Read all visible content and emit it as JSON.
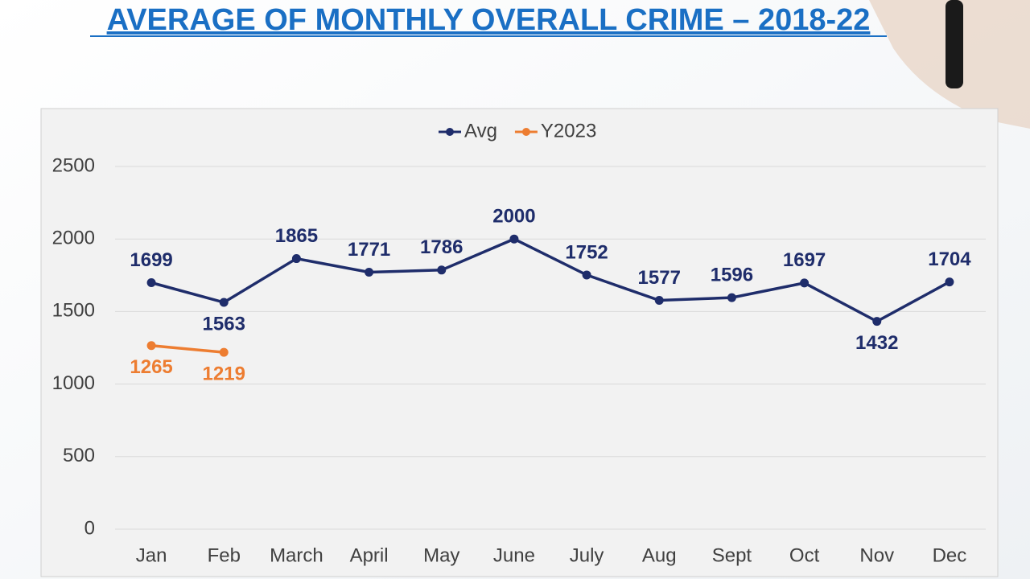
{
  "chart_data": {
    "type": "line",
    "title": "AVERAGE OF MONTHLY OVERALL CRIME – 2018-22",
    "categories": [
      "Jan",
      "Feb",
      "March",
      "April",
      "May",
      "June",
      "July",
      "Aug",
      "Sept",
      "Oct",
      "Nov",
      "Dec"
    ],
    "series": [
      {
        "name": "Avg",
        "color": "#1f2d6b",
        "values": [
          1699,
          1563,
          1865,
          1771,
          1786,
          2000,
          1752,
          1577,
          1596,
          1697,
          1432,
          1704
        ]
      },
      {
        "name": "Y2023",
        "color": "#ed7d31",
        "values": [
          1265,
          1219,
          null,
          null,
          null,
          null,
          null,
          null,
          null,
          null,
          null,
          null
        ]
      }
    ],
    "ylim": [
      0,
      2500
    ],
    "yticks": [
      0,
      500,
      1000,
      1500,
      2000,
      2500
    ],
    "grid": true,
    "legend": "top"
  }
}
